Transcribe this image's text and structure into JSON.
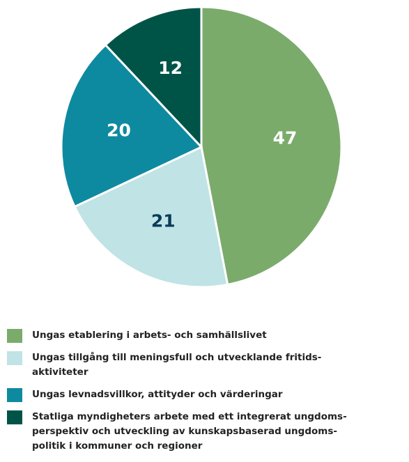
{
  "chart_data": {
    "type": "pie",
    "categories": [
      "Ungas etablering i arbets- och samhällslivet",
      "Ungas tillgång till meningsfull och utvecklande fritids-\naktiviteter",
      "Ungas levnadsvillkor, attityder och värderingar",
      "Statliga myndigheters arbete med ett integrerat ungdoms-\nperspektiv och utveckling av kunskapsbaserad ungdoms-\npolitik i kommuner och regioner"
    ],
    "values": [
      47,
      21,
      20,
      12
    ],
    "colors": [
      "#7aab6b",
      "#c0e3e5",
      "#0e8aa0",
      "#005447"
    ],
    "label_colors": [
      "#ffffff",
      "#0a3a5a",
      "#ffffff",
      "#ffffff"
    ],
    "legend": "bottom"
  }
}
